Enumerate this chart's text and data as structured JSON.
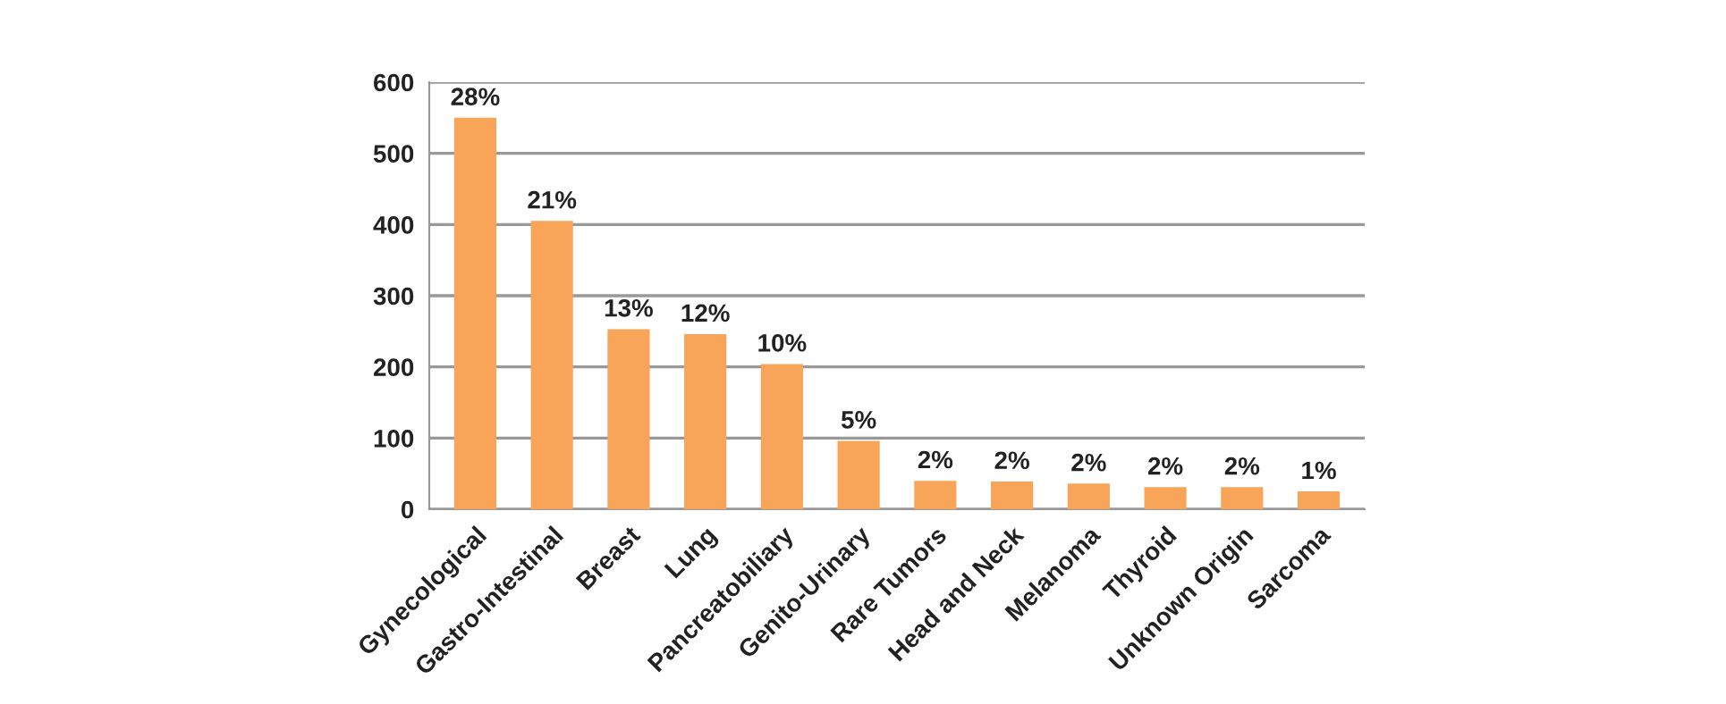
{
  "chart_data": {
    "type": "bar",
    "categories": [
      "Gynecological",
      "Gastro-Intestinal",
      "Breast",
      "Lung",
      "Pancreatobiliary",
      "Genito-Urinary",
      "Rare Tumors",
      "Head and Neck",
      "Melanoma",
      "Thyroid",
      "Unknown Origin",
      "Sarcoma"
    ],
    "values": [
      550,
      405,
      253,
      246,
      204,
      96,
      40,
      39,
      36,
      31,
      31,
      25
    ],
    "annotations": [
      {
        "text": "28%",
        "x": "Gynecological",
        "y": 550
      },
      {
        "text": "21%",
        "x": "Gastro-Intestinal",
        "y": 405
      },
      {
        "text": "13%",
        "x": "Breast",
        "y": 253
      },
      {
        "text": "12%",
        "x": "Lung",
        "y": 246
      },
      {
        "text": "10%",
        "x": "Pancreatobiliary",
        "y": 204
      },
      {
        "text": "5%",
        "x": "Genito-Urinary",
        "y": 96
      },
      {
        "text": "2%",
        "x": "Rare Tumors",
        "y": 40
      },
      {
        "text": "2%",
        "x": "Head and Neck",
        "y": 39
      },
      {
        "text": "2%",
        "x": "Melanoma",
        "y": 36
      },
      {
        "text": "2%",
        "x": "Thyroid",
        "y": 31
      },
      {
        "text": "2%",
        "x": "Unknown Origin",
        "y": 31
      },
      {
        "text": "1%",
        "x": "Sarcoma",
        "y": 25
      }
    ],
    "color": "#f8a55a",
    "ylim": [
      0,
      600
    ],
    "yticks": [
      0,
      100,
      200,
      300,
      400,
      500,
      600
    ],
    "grid": "y",
    "legend": false
  }
}
